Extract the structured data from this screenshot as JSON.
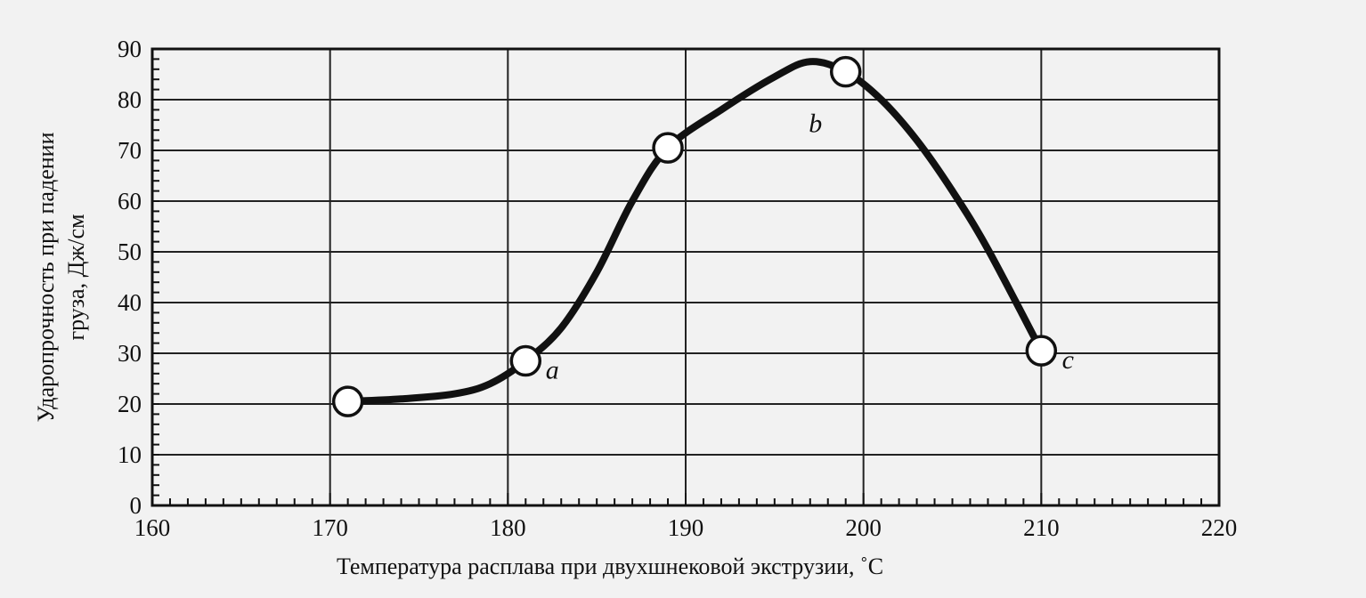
{
  "chart_data": {
    "type": "line",
    "xlabel": "Температура расплава при двухшнековой экструзии, ˚С",
    "ylabel": "Ударопрочность при падении груза, Дж/см",
    "ylabel_lines": [
      "Ударопрочность при падении",
      "груза, Дж/см"
    ],
    "xlim": [
      160,
      220
    ],
    "ylim": [
      0,
      90
    ],
    "x_ticks": [
      160,
      170,
      180,
      190,
      200,
      210,
      220
    ],
    "y_ticks": [
      0,
      10,
      20,
      30,
      40,
      50,
      60,
      70,
      80,
      90
    ],
    "grid": true,
    "series": [
      {
        "points": [
          {
            "x": 171,
            "y": 20.5,
            "label": ""
          },
          {
            "x": 181,
            "y": 28.5,
            "label": "a"
          },
          {
            "x": 189,
            "y": 70.5,
            "label": ""
          },
          {
            "x": 199,
            "y": 85.5,
            "label": "b"
          },
          {
            "x": 210,
            "y": 30.5,
            "label": "c"
          }
        ],
        "curve": [
          [
            171,
            20.5
          ],
          [
            174,
            21.0
          ],
          [
            177,
            22.0
          ],
          [
            179,
            24.0
          ],
          [
            181,
            28.5
          ],
          [
            183,
            35
          ],
          [
            185,
            46
          ],
          [
            187,
            60
          ],
          [
            189,
            70.5
          ],
          [
            192,
            78
          ],
          [
            195,
            84.5
          ],
          [
            197,
            87.5
          ],
          [
            199,
            85.5
          ],
          [
            201,
            80
          ],
          [
            203,
            72
          ],
          [
            205,
            62
          ],
          [
            207,
            50.5
          ],
          [
            210,
            30.5
          ]
        ]
      }
    ],
    "line_color": "#111111",
    "marker_fill": "#ffffff"
  }
}
